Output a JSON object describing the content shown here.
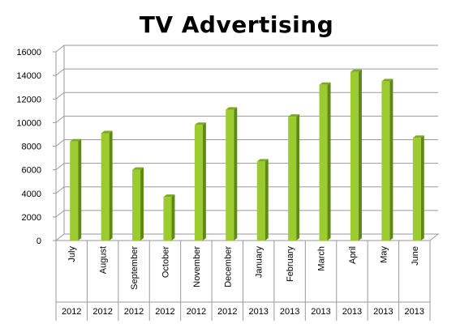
{
  "chart_data": {
    "type": "bar",
    "title": "TV Advertising",
    "categories": [
      "July",
      "August",
      "September",
      "October",
      "November",
      "December",
      "January",
      "February",
      "March",
      "April",
      "May",
      "June"
    ],
    "years": [
      "2012",
      "2012",
      "2012",
      "2012",
      "2012",
      "2012",
      "2013",
      "2013",
      "2013",
      "2013",
      "2013",
      "2013"
    ],
    "values": [
      8400,
      9100,
      6000,
      3700,
      9800,
      11100,
      6700,
      10500,
      13200,
      14300,
      13500,
      8700
    ],
    "ylim": [
      0,
      16000
    ],
    "yticks": [
      "0",
      "2000",
      "4000",
      "6000",
      "8000",
      "10000",
      "12000",
      "14000",
      "16000"
    ],
    "grid": true,
    "legend": "none",
    "colors": {
      "bar_front": "#9BCB2E",
      "bar_side": "#5E8A14",
      "bar_top": "#7DAA1E",
      "grid": "#9a9a9a"
    }
  }
}
